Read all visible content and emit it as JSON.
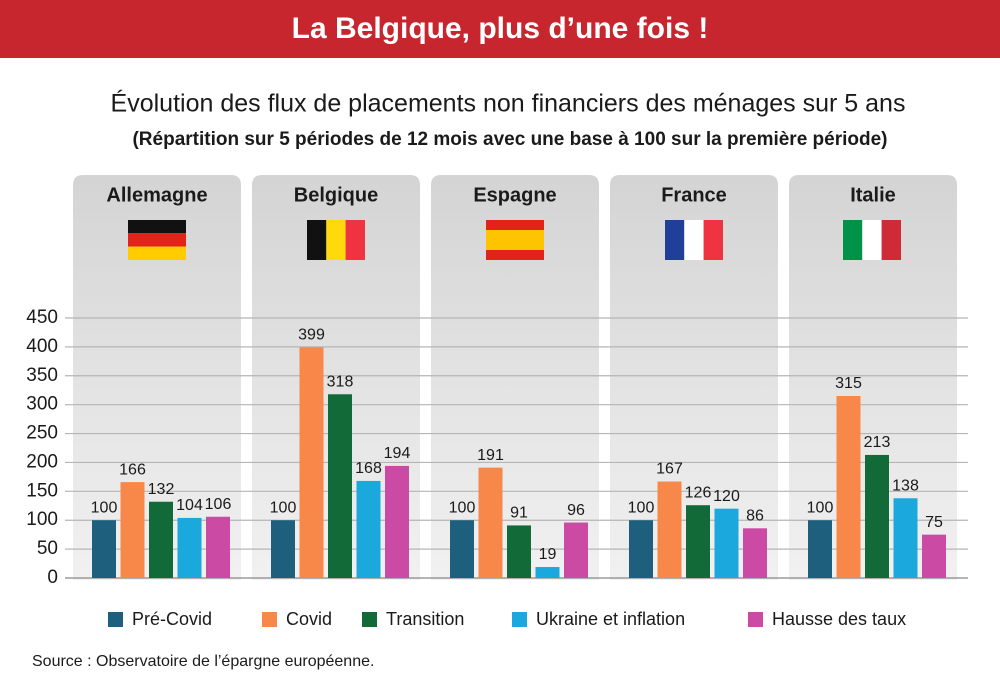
{
  "chart_data": {
    "type": "bar",
    "banner": "La Belgique, plus d’une fois !",
    "title": "Évolution des flux de placements non financiers des ménages sur 5 ans",
    "subtitle": "(Répartition sur 5 périodes de 12 mois avec une base à 100 sur la première période)",
    "source": "Source : Observatoire de l’épargne européenne.",
    "categories": [
      "Allemagne",
      "Belgique",
      "Espagne",
      "France",
      "Italie"
    ],
    "series": [
      {
        "name": "Pré-Covid",
        "color": "#1d5f7c",
        "values": [
          100,
          100,
          100,
          100,
          100
        ]
      },
      {
        "name": "Covid",
        "color": "#f7884a",
        "values": [
          166,
          399,
          191,
          167,
          315
        ]
      },
      {
        "name": "Transition",
        "color": "#136a39",
        "values": [
          132,
          318,
          91,
          126,
          213
        ]
      },
      {
        "name": "Ukraine et inflation",
        "color": "#1ba8dc",
        "values": [
          104,
          168,
          19,
          120,
          138
        ]
      },
      {
        "name": "Hausse des taux",
        "color": "#cb4aa3",
        "values": [
          106,
          194,
          96,
          86,
          75
        ]
      }
    ],
    "ylim": [
      0,
      450
    ],
    "yticks": [
      0,
      50,
      100,
      150,
      200,
      250,
      300,
      350,
      400,
      450
    ],
    "grid": true
  }
}
